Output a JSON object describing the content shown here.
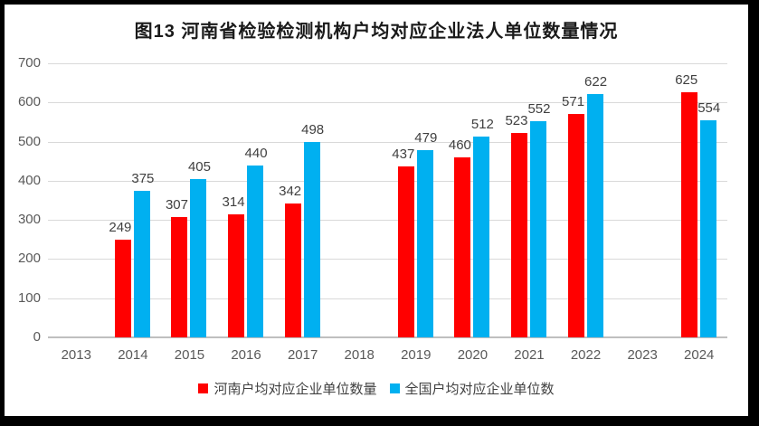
{
  "frame_color": "#000000",
  "chart_data": {
    "type": "bar",
    "title": "图13  河南省检验检测机构户均对应企业法人单位数量情况",
    "categories": [
      "2013",
      "2014",
      "2015",
      "2016",
      "2017",
      "2018",
      "2019",
      "2020",
      "2021",
      "2022",
      "2023",
      "2024"
    ],
    "series": [
      {
        "name": "河南户均对应企业单位数量",
        "color": "#FF0000",
        "values": [
          null,
          249,
          307,
          314,
          342,
          null,
          437,
          460,
          523,
          571,
          null,
          625
        ]
      },
      {
        "name": "全国户均对应企业单位数",
        "color": "#00B0F0",
        "values": [
          null,
          375,
          405,
          440,
          498,
          null,
          479,
          512,
          552,
          622,
          null,
          554
        ]
      }
    ],
    "ylim": [
      0,
      700
    ],
    "ytick_interval": 100,
    "yticks": [
      0,
      100,
      200,
      300,
      400,
      500,
      600,
      700
    ],
    "grid": true,
    "gridline_color": "#D9D9D9",
    "axis_line_color": "#BFBFBF",
    "tick_label_color": "#595959",
    "data_label_color": "#404040",
    "legend_position": "bottom",
    "data_labels_shown": true
  }
}
